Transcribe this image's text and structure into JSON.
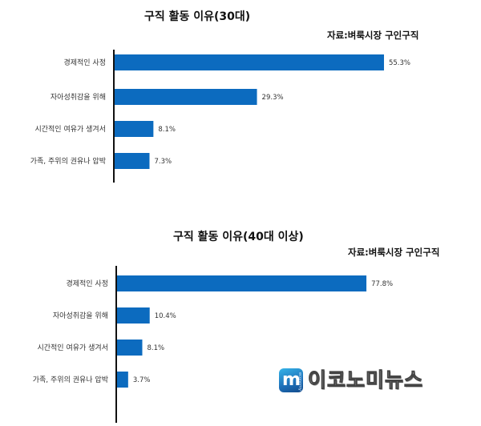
{
  "charts": [
    {
      "title": "구직 활동 이유(30대)",
      "source": "자료:벼룩시장 구인구직"
    },
    {
      "title": "구직 활동 이유(40대 이상)",
      "source": "자료:벼룩시장 구인구직"
    }
  ],
  "chart_data": [
    {
      "type": "bar",
      "orientation": "horizontal",
      "title": "구직 활동 이유(30대)",
      "categories": [
        "경제적인 사정",
        "자아성취감을 위해",
        "시간적인 여유가 생겨서",
        "가족, 주위의 권유나 압박"
      ],
      "values": [
        55.3,
        29.3,
        8.1,
        7.3
      ],
      "labels": [
        "55.3%",
        "29.3%",
        "8.1%",
        "7.3%"
      ],
      "unit": "%",
      "xlim": [
        0,
        64
      ],
      "color": "#0c6bbf",
      "grid": false
    },
    {
      "type": "bar",
      "orientation": "horizontal",
      "title": "구직 활동 이유(40대 이상)",
      "categories": [
        "경제적인 사정",
        "자아성취감을 위해",
        "시간적인 여유가 생겨서",
        "가족, 주위의 권유나 압박"
      ],
      "values": [
        77.8,
        10.4,
        8.1,
        3.7
      ],
      "labels": [
        "77.8%",
        "10.4%",
        "8.1%",
        "3.7%"
      ],
      "unit": "%",
      "xlim": [
        0,
        90
      ],
      "color": "#0c6bbf",
      "grid": false
    }
  ],
  "logo": {
    "text": "이코노미뉴스",
    "mark_letter": "m",
    "mark_tag": "economy"
  }
}
